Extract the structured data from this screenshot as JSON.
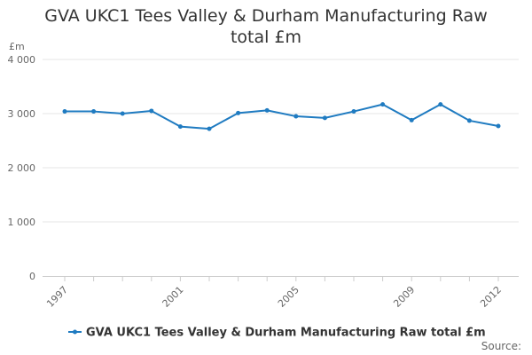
{
  "chart_data": {
    "type": "line",
    "title": "GVA UKC1 Tees Valley & Durham Manufacturing Raw total £m",
    "unit_label": "£m",
    "ylim": [
      0,
      4000
    ],
    "y_ticks": [
      0,
      1000,
      2000,
      3000,
      4000
    ],
    "y_tick_labels": [
      "0",
      "1 000",
      "2 000",
      "3 000",
      "4 000"
    ],
    "x_tick_labels": [
      "1997",
      "2001",
      "2005",
      "2009",
      "2012"
    ],
    "x": [
      1997,
      1998,
      1999,
      2000,
      2001,
      2002,
      2003,
      2004,
      2005,
      2006,
      2007,
      2008,
      2009,
      2010,
      2011,
      2012
    ],
    "series": [
      {
        "name": "GVA UKC1 Tees Valley & Durham Manufacturing Raw total £m",
        "color": "#1f7bc1",
        "values": [
          3040,
          3040,
          3000,
          3050,
          2760,
          2720,
          3010,
          3060,
          2950,
          2920,
          3040,
          3170,
          2880,
          3170,
          2870,
          2770
        ]
      }
    ],
    "grid": true,
    "legend_position": "bottom"
  },
  "source_label": "Source:"
}
